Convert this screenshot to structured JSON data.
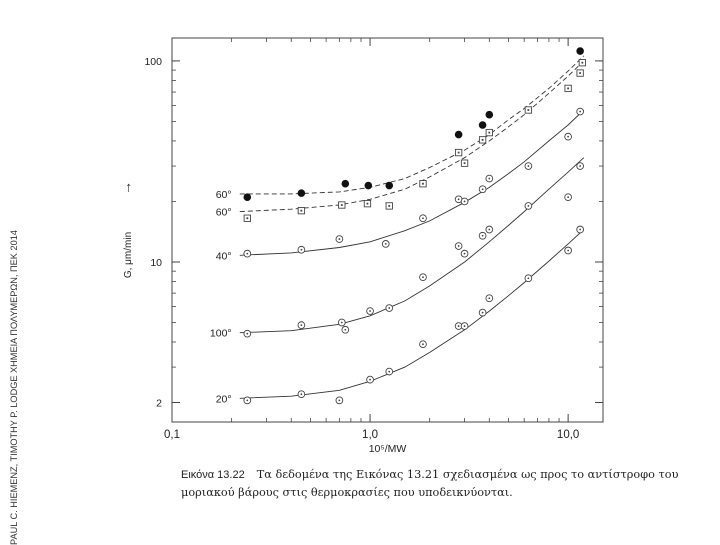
{
  "sidebar": {
    "text": "PAUL C. HIEMENZ, TIMOTHY P. LODGE ΧΗΜΕΙΑ ΠΟΛΥΜΕΡΩΝ, ΠΕΚ 2014"
  },
  "caption": {
    "label": "Εικόνα 13.22",
    "line1": "Τα δεδομένα της Εικόνας 13.21 σχεδιασμένα ως προς το αντίστροφο του",
    "line2": "μοριακού βάρους στις θερμοκρασίες που υποδεικνύονται."
  },
  "chart_data": {
    "type": "scatter",
    "xscale": "log",
    "yscale": "log",
    "xlim": [
      0.1,
      15
    ],
    "ylim": [
      1.6,
      130
    ],
    "xlabel": "10⁵/MW",
    "ylabel": "G, μm/min",
    "ylabel_arrow": "→",
    "x_ticks": [
      {
        "v": 0.1,
        "label": "0,1"
      },
      {
        "v": 1.0,
        "label": "1,0"
      },
      {
        "v": 10.0,
        "label": "10,0"
      }
    ],
    "y_ticks": [
      {
        "v": 2,
        "label": "2"
      },
      {
        "v": 10,
        "label": "10"
      },
      {
        "v": 100,
        "label": "100"
      }
    ],
    "series": [
      {
        "name": "60° (filled)",
        "label": "60°",
        "marker": "filled-circle",
        "curve": "dashed",
        "points": [
          [
            0.24,
            21
          ],
          [
            0.45,
            22
          ],
          [
            0.75,
            24.5
          ],
          [
            0.98,
            24
          ],
          [
            1.25,
            24
          ],
          [
            2.8,
            43
          ],
          [
            3.7,
            48
          ],
          [
            4.0,
            54
          ],
          [
            11.5,
            112
          ]
        ],
        "fit": [
          [
            0.22,
            21.8
          ],
          [
            0.4,
            21.8
          ],
          [
            0.7,
            22.3
          ],
          [
            1.0,
            23.5
          ],
          [
            1.5,
            26
          ],
          [
            2.0,
            29.5
          ],
          [
            3.0,
            36
          ],
          [
            4.0,
            43
          ],
          [
            5.0,
            51
          ],
          [
            6.0,
            58
          ],
          [
            8.0,
            73
          ],
          [
            10.0,
            89
          ],
          [
            12.0,
            106
          ]
        ]
      },
      {
        "name": "60° (squares)",
        "label": "60°",
        "marker": "square",
        "curve": "dashed",
        "points": [
          [
            0.24,
            16.5
          ],
          [
            0.45,
            18
          ],
          [
            0.72,
            19.2
          ],
          [
            0.97,
            19.5
          ],
          [
            1.25,
            19
          ],
          [
            1.85,
            24.5
          ],
          [
            2.8,
            35
          ],
          [
            3.0,
            31
          ],
          [
            3.7,
            40.5
          ],
          [
            4.0,
            44
          ],
          [
            6.3,
            57
          ],
          [
            10.0,
            73
          ],
          [
            11.5,
            87
          ],
          [
            11.8,
            98
          ]
        ],
        "fit": [
          [
            0.22,
            17.8
          ],
          [
            0.4,
            18.3
          ],
          [
            0.7,
            19.2
          ],
          [
            1.0,
            20.5
          ],
          [
            1.5,
            23
          ],
          [
            2.0,
            26.5
          ],
          [
            3.0,
            33
          ],
          [
            4.0,
            40
          ],
          [
            5.0,
            47
          ],
          [
            6.0,
            54
          ],
          [
            8.0,
            69
          ],
          [
            10.0,
            84
          ],
          [
            12.0,
            100
          ]
        ]
      },
      {
        "name": "40°",
        "label": "40°",
        "marker": "dot-circle",
        "curve": "solid",
        "points": [
          [
            0.24,
            11
          ],
          [
            0.45,
            11.5
          ],
          [
            0.7,
            13
          ],
          [
            1.2,
            12.3
          ],
          [
            1.85,
            16.5
          ],
          [
            2.8,
            20.5
          ],
          [
            3.0,
            20
          ],
          [
            3.7,
            23
          ],
          [
            4.0,
            26
          ],
          [
            6.3,
            30
          ],
          [
            10.0,
            42
          ],
          [
            11.5,
            56
          ]
        ],
        "fit": [
          [
            0.22,
            10.8
          ],
          [
            0.4,
            11.1
          ],
          [
            0.7,
            11.8
          ],
          [
            1.0,
            12.6
          ],
          [
            1.5,
            14.3
          ],
          [
            2.0,
            16
          ],
          [
            3.0,
            19.8
          ],
          [
            4.0,
            23.5
          ],
          [
            5.0,
            27.5
          ],
          [
            6.0,
            31.5
          ],
          [
            8.0,
            40
          ],
          [
            10.0,
            48
          ],
          [
            12.0,
            57
          ]
        ]
      },
      {
        "name": "100°",
        "label": "100°",
        "marker": "dot-circle",
        "curve": "solid",
        "points": [
          [
            0.24,
            4.4
          ],
          [
            0.45,
            4.85
          ],
          [
            0.72,
            5.0
          ],
          [
            0.75,
            4.6
          ],
          [
            1.0,
            5.7
          ],
          [
            1.25,
            5.9
          ],
          [
            1.85,
            8.4
          ],
          [
            2.8,
            12
          ],
          [
            3.0,
            11
          ],
          [
            3.7,
            13.5
          ],
          [
            4.0,
            14.5
          ],
          [
            6.3,
            19
          ],
          [
            10.0,
            21
          ],
          [
            11.5,
            30
          ]
        ],
        "fit": [
          [
            0.22,
            4.45
          ],
          [
            0.4,
            4.55
          ],
          [
            0.7,
            4.9
          ],
          [
            1.0,
            5.4
          ],
          [
            1.5,
            6.4
          ],
          [
            2.0,
            7.6
          ],
          [
            3.0,
            10
          ],
          [
            4.0,
            12.6
          ],
          [
            5.0,
            15.2
          ],
          [
            6.0,
            17.8
          ],
          [
            8.0,
            23
          ],
          [
            10.0,
            28
          ],
          [
            12.0,
            33
          ]
        ]
      },
      {
        "name": "20°",
        "label": "20°",
        "marker": "dot-circle",
        "curve": "solid",
        "points": [
          [
            0.24,
            2.05
          ],
          [
            0.45,
            2.2
          ],
          [
            0.7,
            2.05
          ],
          [
            1.0,
            2.6
          ],
          [
            1.25,
            2.85
          ],
          [
            1.85,
            3.9
          ],
          [
            2.8,
            4.8
          ],
          [
            3.0,
            4.8
          ],
          [
            3.7,
            5.6
          ],
          [
            4.0,
            6.6
          ],
          [
            6.3,
            8.3
          ],
          [
            10.0,
            11.4
          ],
          [
            11.5,
            14.5
          ]
        ],
        "fit": [
          [
            0.22,
            2.1
          ],
          [
            0.4,
            2.15
          ],
          [
            0.7,
            2.3
          ],
          [
            1.0,
            2.55
          ],
          [
            1.5,
            3.0
          ],
          [
            2.0,
            3.55
          ],
          [
            3.0,
            4.6
          ],
          [
            4.0,
            5.7
          ],
          [
            5.0,
            6.8
          ],
          [
            6.0,
            7.9
          ],
          [
            8.0,
            10.1
          ],
          [
            10.0,
            12.3
          ],
          [
            12.0,
            14.5
          ]
        ]
      }
    ],
    "colors": {
      "axis": "#444444",
      "curve": "#333333",
      "marker": "#444444",
      "filled": "#111111"
    }
  }
}
